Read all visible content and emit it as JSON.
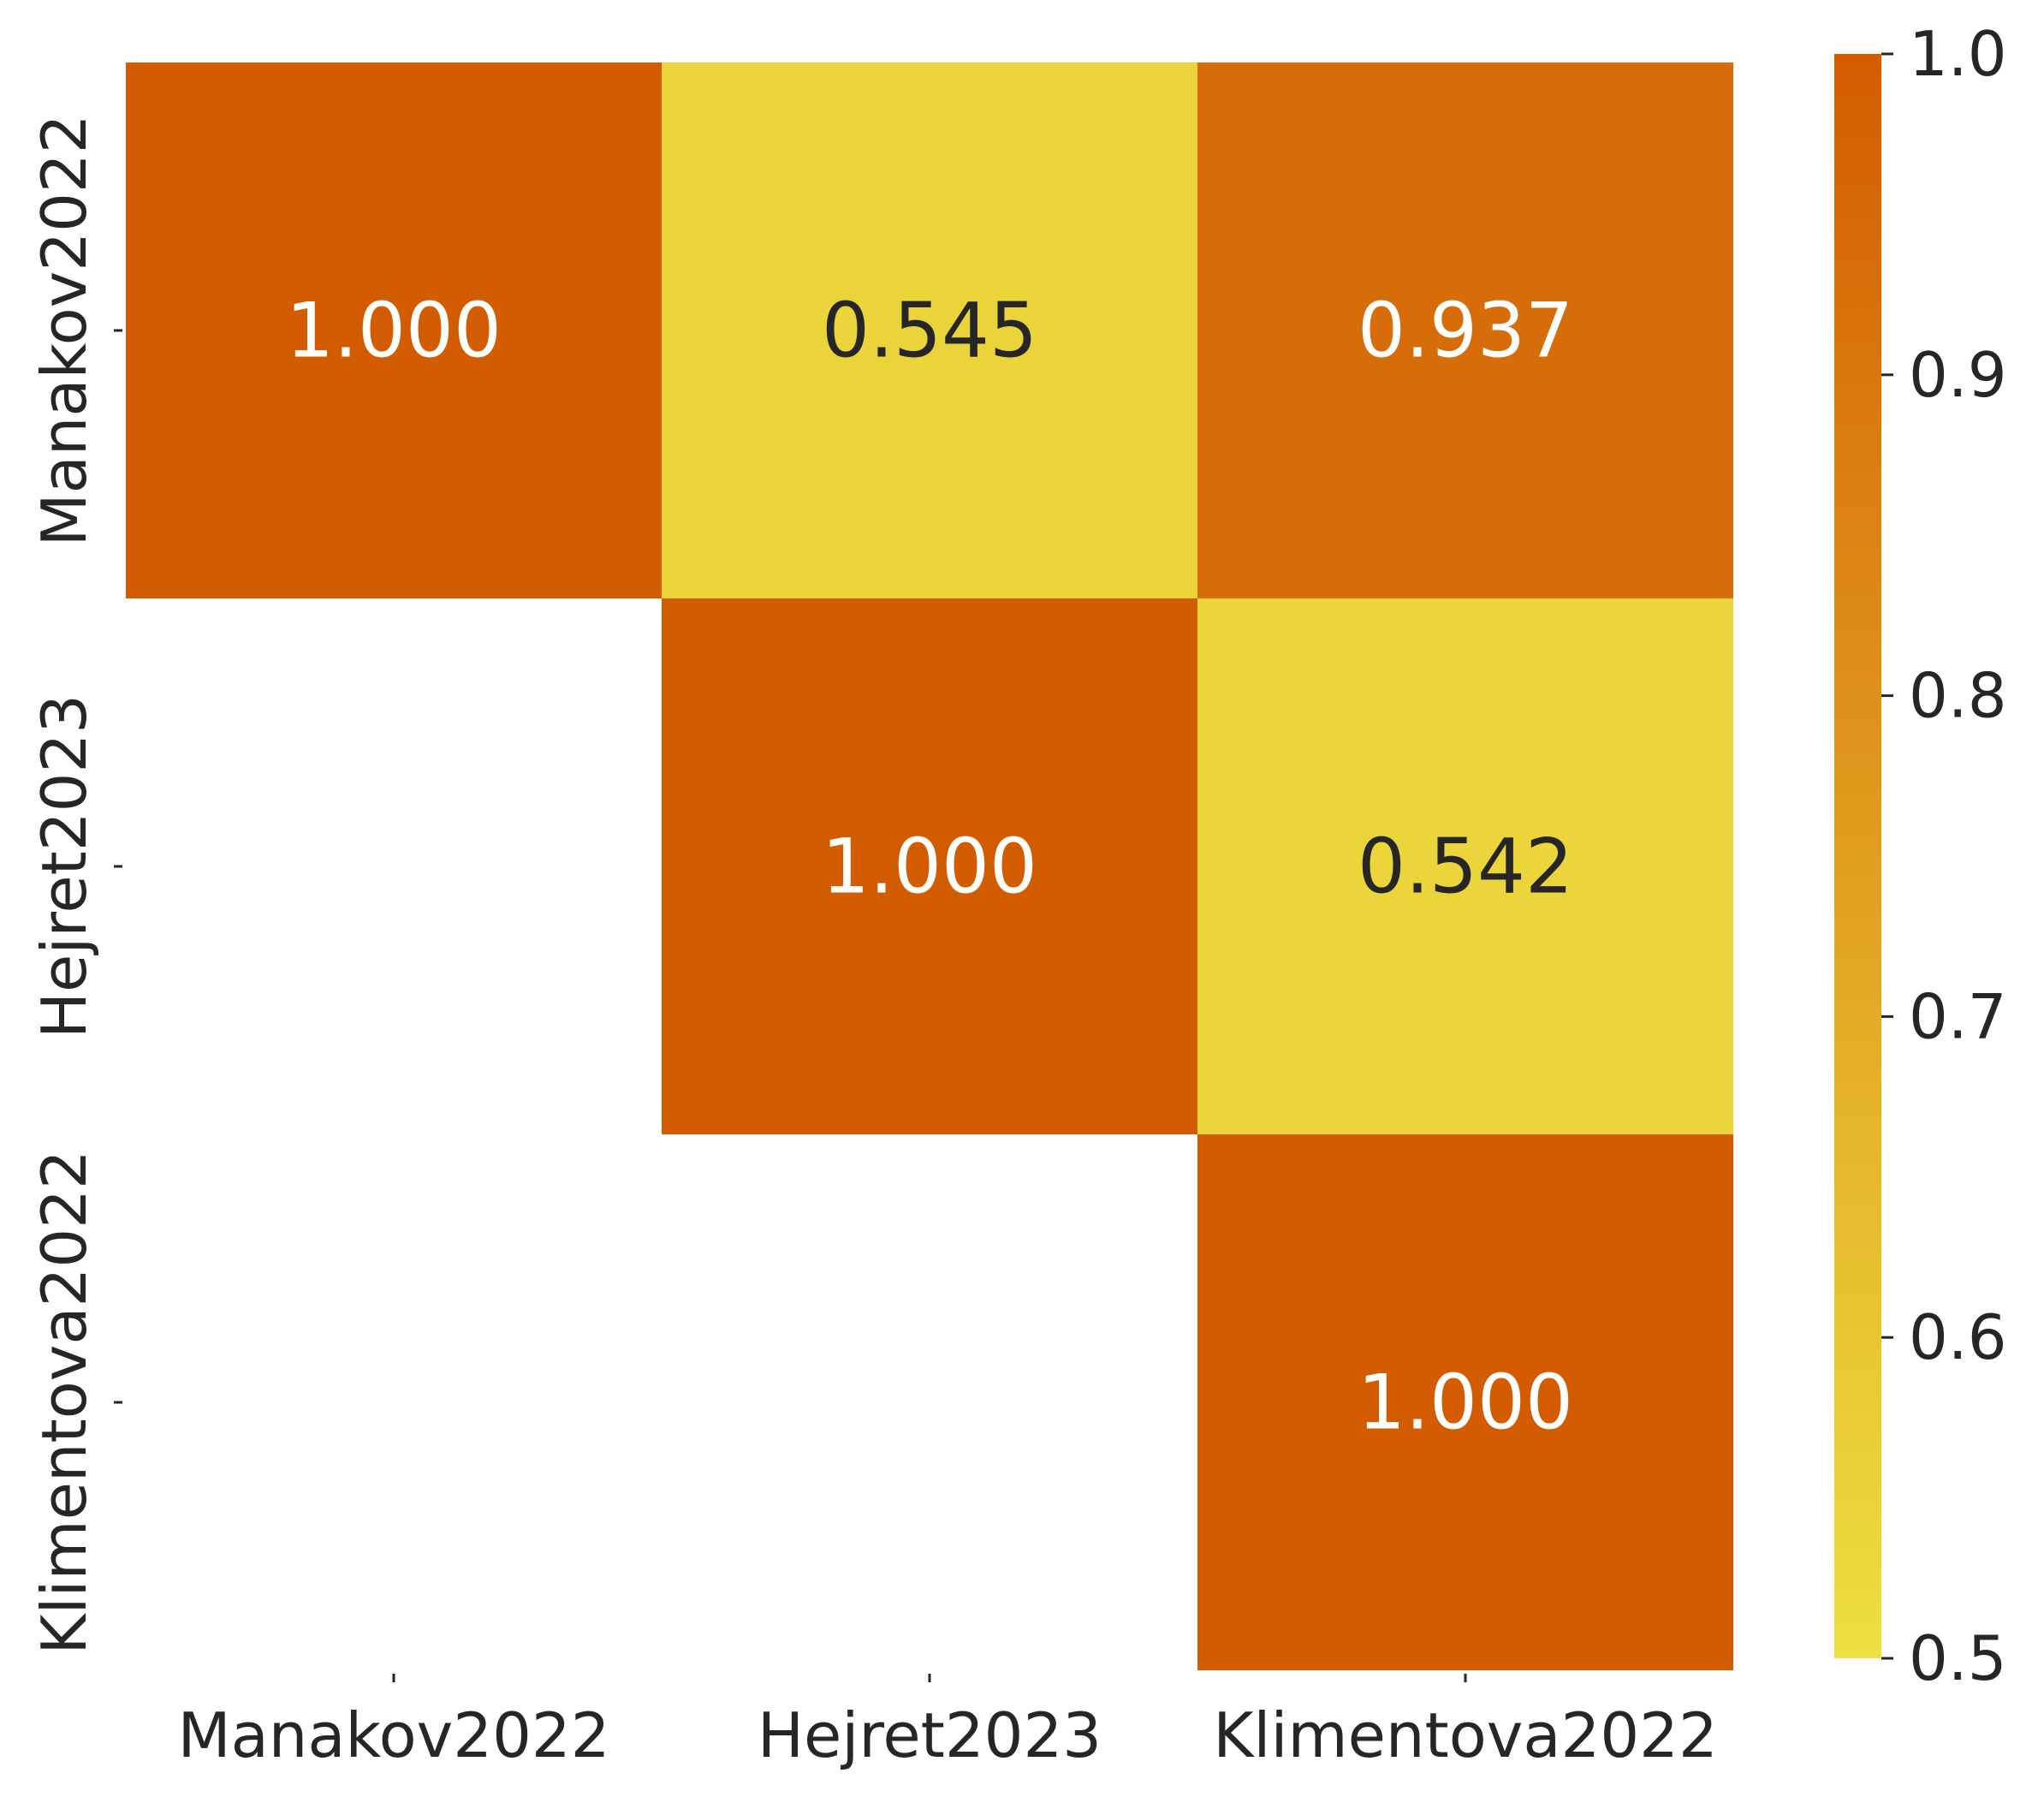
{
  "chart_data": {
    "type": "heatmap",
    "title": "",
    "xlabel": "",
    "ylabel": "",
    "x_categories": [
      "Manakov2022",
      "Hejret2023",
      "Klimentova2022"
    ],
    "y_categories": [
      "Manakov2022",
      "Hejret2023",
      "Klimentova2022"
    ],
    "matrix": [
      [
        1.0,
        0.545,
        0.937
      ],
      [
        null,
        1.0,
        0.542
      ],
      [
        null,
        null,
        1.0
      ]
    ],
    "cell_labels": [
      [
        "1.000",
        "0.545",
        "0.937"
      ],
      [
        "",
        "1.000",
        "0.542"
      ],
      [
        "",
        "",
        "1.000"
      ]
    ],
    "mask": "lower-triangle",
    "colorbar": {
      "range": [
        0.5,
        1.0
      ],
      "ticks": [
        0.5,
        0.6,
        0.7,
        0.8,
        0.9,
        1.0
      ],
      "tick_labels": [
        "0.5",
        "0.6",
        "0.7",
        "0.8",
        "0.9",
        "1.0"
      ],
      "low_color": "#ede03f",
      "high_color": "#d45c00"
    },
    "legend_position": "right",
    "grid": false
  }
}
